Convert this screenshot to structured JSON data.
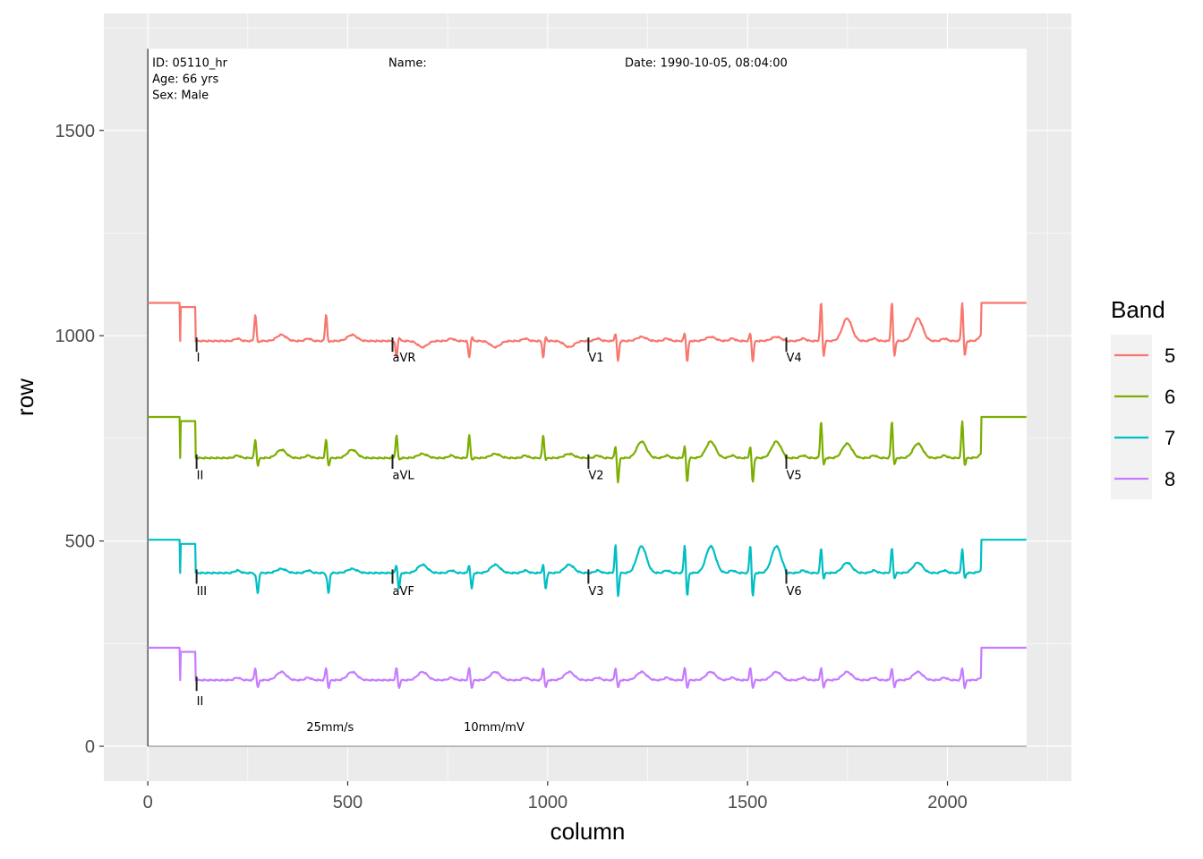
{
  "chart_data": {
    "type": "line",
    "title": "",
    "xlabel": "column",
    "ylabel": "row",
    "xlim": [
      -110,
      2310
    ],
    "ylim": [
      -85,
      1785
    ],
    "x_ticks": [
      0,
      500,
      1000,
      1500,
      2000
    ],
    "x_tick_labels": [
      "0",
      "500",
      "1000",
      "1500",
      "2000"
    ],
    "y_ticks": [
      0,
      500,
      1000,
      1500
    ],
    "y_tick_labels": [
      "0",
      "500",
      "1000",
      "1500"
    ],
    "grid": true,
    "legend": {
      "title": "Band",
      "placement": "right",
      "entries": [
        "5",
        "6",
        "7",
        "8"
      ]
    },
    "image_extent": {
      "columns": [
        0,
        2198
      ],
      "rows": [
        0,
        1699
      ]
    },
    "header": {
      "id": "ID: 05110_hr",
      "age": "Age: 66 yrs",
      "sex": "Sex: Male",
      "name": "Name:",
      "date": "Date: 1990-10-05, 08:04:00"
    },
    "footer": {
      "speed": "25mm/s",
      "gain": "10mm/mV",
      "speed_col": 456,
      "gain_col": 866,
      "row": 48
    },
    "beat_columns": [
      269,
      446,
      622,
      804,
      989,
      1170,
      1343,
      1507,
      1684,
      1861,
      2037
    ],
    "segment_starts": [
      120,
      610,
      1100,
      1595
    ],
    "calibration_end_start": 2085,
    "series": [
      {
        "name": "5",
        "color": "#F8766D",
        "baseline": 987,
        "cal_level": 1080,
        "label_row": 948,
        "leads": [
          "I",
          "aVR",
          "V1",
          "V4"
        ],
        "segments": [
          {
            "r": 65,
            "s": -5,
            "t": 15
          },
          {
            "r": -40,
            "s": 10,
            "t": -15
          },
          {
            "r": 20,
            "s": -50,
            "t": 10
          },
          {
            "r": 95,
            "s": -40,
            "t": 55
          }
        ]
      },
      {
        "name": "6",
        "color": "#7CAE00",
        "baseline": 702,
        "cal_level": 802,
        "label_row": 662,
        "leads": [
          "II",
          "aVL",
          "V2",
          "V5"
        ],
        "segments": [
          {
            "r": 45,
            "s": -20,
            "t": 20
          },
          {
            "r": 55,
            "s": -5,
            "t": 10
          },
          {
            "r": 30,
            "s": -60,
            "t": 40
          },
          {
            "r": 90,
            "s": -20,
            "t": 35
          }
        ]
      },
      {
        "name": "7",
        "color": "#00BFC4",
        "baseline": 422,
        "cal_level": 503,
        "label_row": 379,
        "leads": [
          "III",
          "aVF",
          "V3",
          "V6"
        ],
        "segments": [
          {
            "r": -5,
            "s": -50,
            "t": 10
          },
          {
            "r": 20,
            "s": -40,
            "t": 20
          },
          {
            "r": 70,
            "s": -60,
            "t": 65
          },
          {
            "r": 60,
            "s": -15,
            "t": 25
          }
        ]
      },
      {
        "name": "8",
        "color": "#C77CFF",
        "baseline": 161,
        "cal_level": 240,
        "label_row": 111,
        "leads": [
          "II"
        ],
        "segments": [
          {
            "r": 30,
            "s": -20,
            "t": 20
          },
          {
            "r": 30,
            "s": -20,
            "t": 20
          },
          {
            "r": 30,
            "s": -20,
            "t": 20
          },
          {
            "r": 30,
            "s": -20,
            "t": 20
          }
        ]
      }
    ]
  }
}
